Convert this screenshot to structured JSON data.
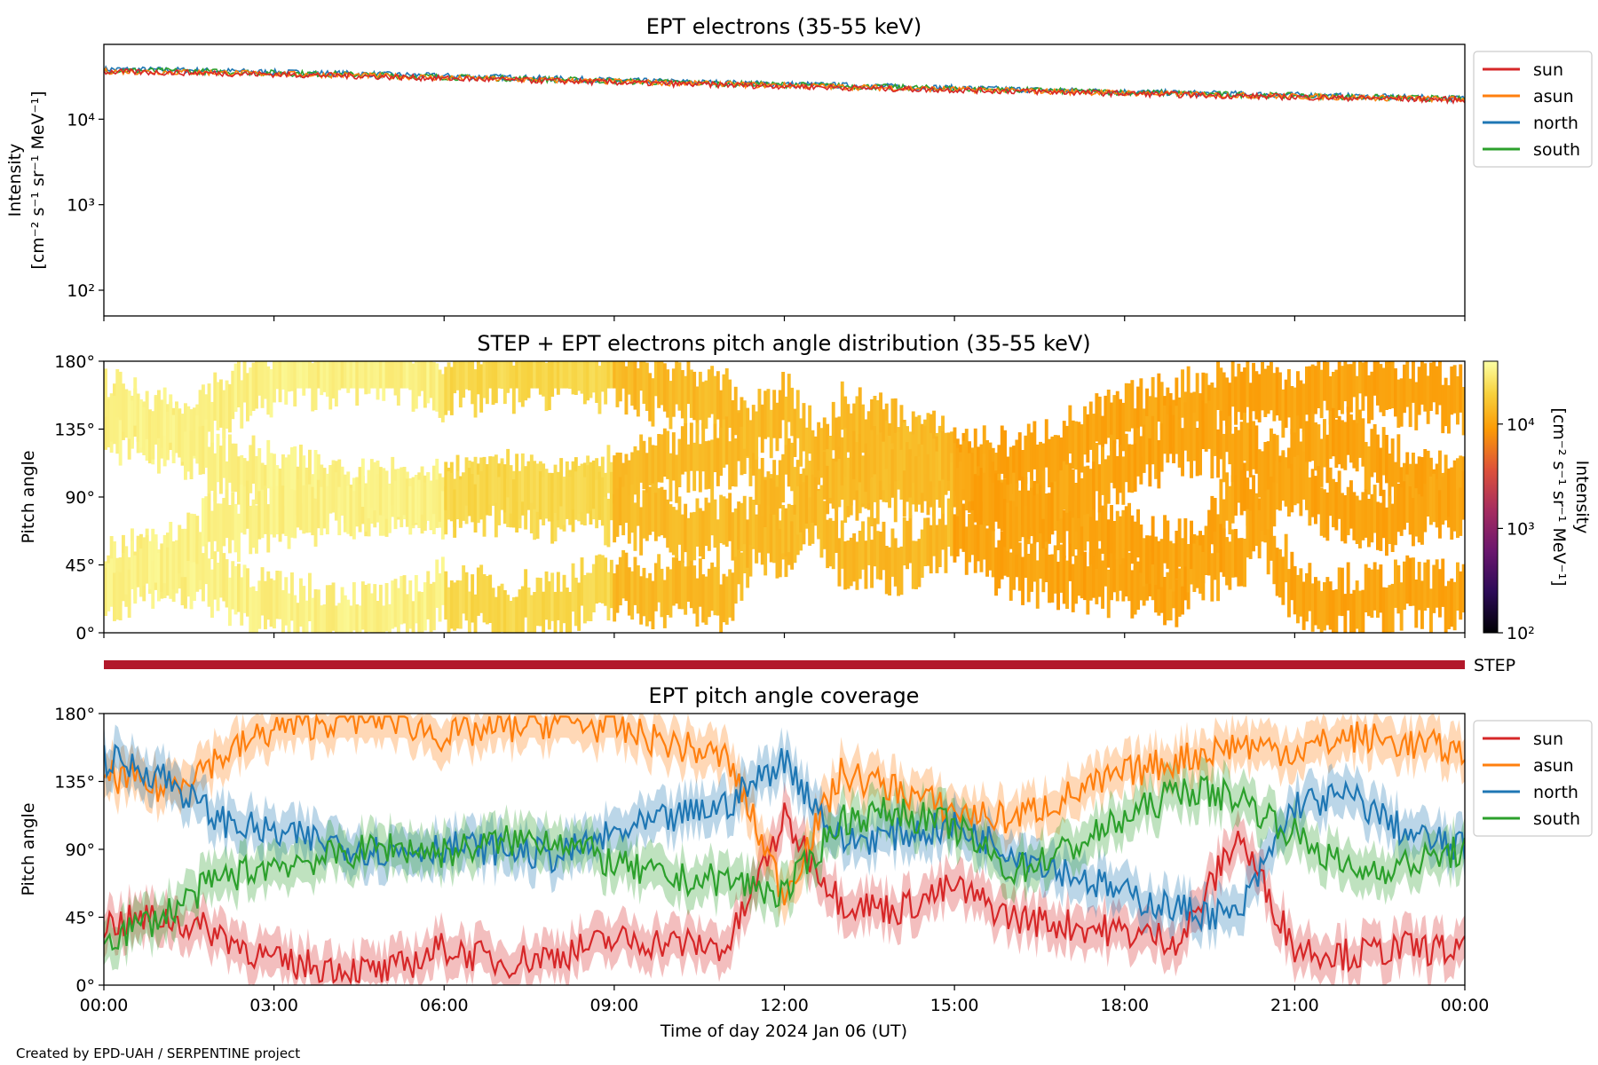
{
  "footer": {
    "credit": "Created by EPD-UAH / SERPENTINE project"
  },
  "colors": {
    "sun": "#d62728",
    "asun": "#ff7f0e",
    "north": "#1f77b4",
    "south": "#2ca02c",
    "step_bar": "#b2182b"
  },
  "x_axis": {
    "label": "Time of day 2024 Jan 06 (UT)",
    "range_hours": [
      0,
      24
    ],
    "ticks": [
      {
        "h": 0,
        "label": "00:00"
      },
      {
        "h": 3,
        "label": "03:00"
      },
      {
        "h": 6,
        "label": "06:00"
      },
      {
        "h": 9,
        "label": "09:00"
      },
      {
        "h": 12,
        "label": "12:00"
      },
      {
        "h": 15,
        "label": "15:00"
      },
      {
        "h": 18,
        "label": "18:00"
      },
      {
        "h": 21,
        "label": "21:00"
      },
      {
        "h": 24,
        "label": "00:00"
      }
    ]
  },
  "chart_data": [
    {
      "type": "line",
      "title": "EPT electrons (35-55 keV)",
      "ylabel_line1": "Intensity",
      "ylabel_line2": "[cm⁻² s⁻¹ sr⁻¹ MeV⁻¹]",
      "yscale": "log",
      "ylim": [
        50,
        75000
      ],
      "yticks": [
        {
          "v": 100,
          "label": "10²"
        },
        {
          "v": 1000,
          "label": "10³"
        },
        {
          "v": 10000,
          "label": "10⁴"
        }
      ],
      "legend_placement": "outside-right",
      "x_hours": [
        0,
        1.5,
        3,
        4.5,
        6,
        7.5,
        9,
        10.5,
        12,
        13.5,
        15,
        16.5,
        18,
        19.5,
        21,
        22.5,
        24
      ],
      "series": [
        {
          "name": "sun",
          "values": [
            36000,
            35000,
            33500,
            32000,
            30000,
            28500,
            27000,
            25500,
            24500,
            23000,
            22000,
            21000,
            20000,
            19000,
            18200,
            17500,
            16800
          ]
        },
        {
          "name": "asun",
          "values": [
            36500,
            35500,
            34000,
            32500,
            30500,
            29000,
            27500,
            26000,
            24800,
            23500,
            22300,
            21300,
            20300,
            19300,
            18500,
            17800,
            17000
          ]
        },
        {
          "name": "north",
          "values": [
            38500,
            37500,
            35500,
            34000,
            32000,
            30500,
            28500,
            27000,
            25800,
            24500,
            23200,
            22000,
            21000,
            20000,
            19200,
            18300,
            17500
          ]
        },
        {
          "name": "south",
          "values": [
            37500,
            36500,
            34800,
            33200,
            31200,
            29700,
            28000,
            26500,
            25300,
            24000,
            22800,
            21700,
            20700,
            19700,
            18900,
            18000,
            17300
          ]
        }
      ]
    },
    {
      "type": "heatmap",
      "title": "STEP + EPT electrons pitch angle distribution (35-55 keV)",
      "ylabel": "Pitch angle",
      "ylim": [
        0,
        180
      ],
      "yticks": [
        {
          "v": 0,
          "label": "0°"
        },
        {
          "v": 45,
          "label": "45°"
        },
        {
          "v": 90,
          "label": "90°"
        },
        {
          "v": 135,
          "label": "135°"
        },
        {
          "v": 180,
          "label": "180°"
        }
      ],
      "colorbar": {
        "label_line1": "Intensity",
        "label_line2": "[cm⁻² s⁻¹ sr⁻¹ MeV⁻¹]",
        "scale": "log",
        "range": [
          100,
          40000
        ],
        "ticks": [
          {
            "v": 100,
            "label": "10²"
          },
          {
            "v": 1000,
            "label": "10³"
          },
          {
            "v": 10000,
            "label": "10⁴"
          }
        ]
      },
      "step_label": "STEP"
    },
    {
      "type": "line",
      "title": "EPT pitch angle coverage",
      "ylabel": "Pitch angle",
      "ylim": [
        0,
        180
      ],
      "yticks": [
        {
          "v": 0,
          "label": "0°"
        },
        {
          "v": 45,
          "label": "45°"
        },
        {
          "v": 90,
          "label": "90°"
        },
        {
          "v": 135,
          "label": "135°"
        },
        {
          "v": 180,
          "label": "180°"
        }
      ],
      "legend_placement": "outside-right",
      "x_hours": [
        0,
        1,
        2,
        3,
        4,
        5,
        6,
        7,
        8,
        9,
        10,
        11,
        12,
        13,
        14,
        15,
        16,
        17,
        18,
        19,
        20,
        21,
        22,
        23,
        24
      ],
      "series": [
        {
          "name": "sun",
          "values": [
            40,
            45,
            35,
            15,
            12,
            8,
            25,
            15,
            20,
            30,
            28,
            25,
            110,
            55,
            50,
            65,
            45,
            40,
            35,
            30,
            100,
            25,
            20,
            25,
            22
          ]
        },
        {
          "name": "asun",
          "values": [
            140,
            130,
            150,
            170,
            175,
            178,
            165,
            170,
            175,
            170,
            160,
            150,
            60,
            140,
            130,
            115,
            110,
            125,
            140,
            150,
            160,
            155,
            165,
            160,
            155
          ]
        },
        {
          "name": "north",
          "values": [
            150,
            140,
            110,
            100,
            95,
            88,
            92,
            90,
            85,
            100,
            110,
            120,
            150,
            95,
            100,
            105,
            90,
            75,
            60,
            50,
            45,
            120,
            125,
            100,
            90
          ]
        },
        {
          "name": "south",
          "values": [
            30,
            45,
            70,
            80,
            85,
            92,
            88,
            95,
            98,
            80,
            70,
            70,
            60,
            110,
            115,
            105,
            75,
            90,
            110,
            130,
            125,
            100,
            75,
            80,
            90
          ]
        }
      ]
    }
  ]
}
